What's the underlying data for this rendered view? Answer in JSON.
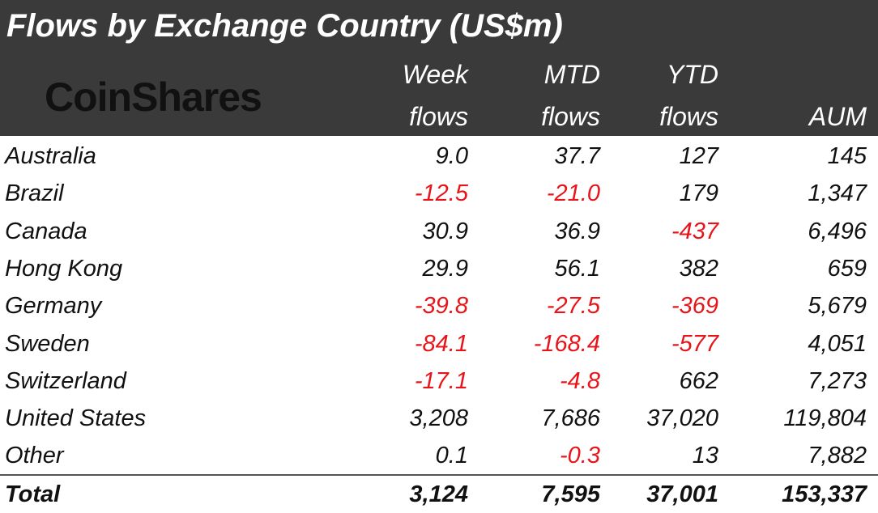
{
  "title": "Flows by Exchange Country (US$m)",
  "logo_text": "CoinShares",
  "headers": {
    "week": [
      "Week",
      "flows"
    ],
    "mtd": [
      "MTD",
      "flows"
    ],
    "ytd": [
      "YTD",
      "flows"
    ],
    "aum": [
      "",
      "AUM"
    ]
  },
  "colors": {
    "header_bg": "#3a3a3a",
    "negative": "#e8141a",
    "text": "#111111"
  },
  "rows": [
    {
      "country": "Australia",
      "week": "9.0",
      "mtd": "37.7",
      "ytd": "127",
      "aum": "145"
    },
    {
      "country": "Brazil",
      "week": "-12.5",
      "mtd": "-21.0",
      "ytd": "179",
      "aum": "1,347"
    },
    {
      "country": "Canada",
      "week": "30.9",
      "mtd": "36.9",
      "ytd": "-437",
      "aum": "6,496"
    },
    {
      "country": "Hong Kong",
      "week": "29.9",
      "mtd": "56.1",
      "ytd": "382",
      "aum": "659"
    },
    {
      "country": "Germany",
      "week": "-39.8",
      "mtd": "-27.5",
      "ytd": "-369",
      "aum": "5,679"
    },
    {
      "country": "Sweden",
      "week": "-84.1",
      "mtd": "-168.4",
      "ytd": "-577",
      "aum": "4,051"
    },
    {
      "country": "Switzerland",
      "week": "-17.1",
      "mtd": "-4.8",
      "ytd": "662",
      "aum": "7,273"
    },
    {
      "country": "United States",
      "week": "3,208",
      "mtd": "7,686",
      "ytd": "37,020",
      "aum": "119,804"
    },
    {
      "country": "Other",
      "week": "0.1",
      "mtd": "-0.3",
      "ytd": "13",
      "aum": "7,882"
    }
  ],
  "total": {
    "country": "Total",
    "week": "3,124",
    "mtd": "7,595",
    "ytd": "37,001",
    "aum": "153,337"
  },
  "chart_data": {
    "type": "table",
    "title": "Flows by Exchange Country (US$m)",
    "columns": [
      "",
      "Week flows",
      "MTD flows",
      "YTD flows",
      "AUM"
    ],
    "rows": [
      [
        "Australia",
        9.0,
        37.7,
        127,
        145
      ],
      [
        "Brazil",
        -12.5,
        -21.0,
        179,
        1347
      ],
      [
        "Canada",
        30.9,
        36.9,
        -437,
        6496
      ],
      [
        "Hong Kong",
        29.9,
        56.1,
        382,
        659
      ],
      [
        "Germany",
        -39.8,
        -27.5,
        -369,
        5679
      ],
      [
        "Sweden",
        -84.1,
        -168.4,
        -577,
        4051
      ],
      [
        "Switzerland",
        -17.1,
        -4.8,
        662,
        7273
      ],
      [
        "United States",
        3208,
        7686,
        37020,
        119804
      ],
      [
        "Other",
        0.1,
        -0.3,
        13,
        7882
      ],
      [
        "Total",
        3124,
        7595,
        37001,
        153337
      ]
    ]
  }
}
